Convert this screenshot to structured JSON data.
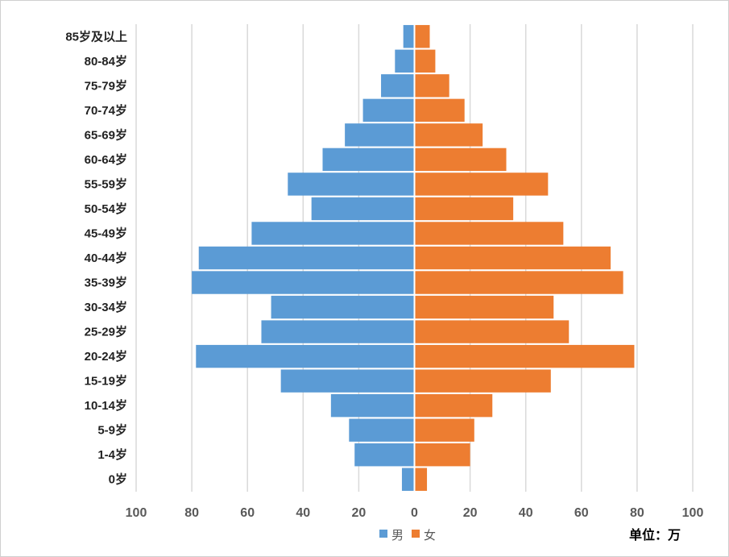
{
  "chart_data": {
    "type": "bar",
    "orientation": "horizontal",
    "subtype": "population-pyramid",
    "categories": [
      "0岁",
      "1-4岁",
      "5-9岁",
      "10-14岁",
      "15-19岁",
      "20-24岁",
      "25-29岁",
      "30-34岁",
      "35-39岁",
      "40-44岁",
      "45-49岁",
      "50-54岁",
      "55-59岁",
      "60-64岁",
      "65-69岁",
      "70-74岁",
      "75-79岁",
      "80-84岁",
      "85岁及以上"
    ],
    "series": [
      {
        "name": "男",
        "color": "#5b9bd5",
        "values": [
          -4.5,
          -21.5,
          -23.5,
          -30,
          -48,
          -78.5,
          -55,
          -51.5,
          -80,
          -77.5,
          -58.5,
          -37,
          -45.5,
          -33,
          -25,
          -18.5,
          -12,
          -7,
          -4
        ]
      },
      {
        "name": "女",
        "color": "#ed7d31",
        "values": [
          4.5,
          20,
          21.5,
          28,
          49,
          79,
          55.5,
          50,
          75,
          70.5,
          53.5,
          35.5,
          48,
          33,
          24.5,
          18,
          12.5,
          7.5,
          5.5
        ]
      }
    ],
    "xlim": [
      -100,
      100
    ],
    "xticks": [
      -100,
      -80,
      -60,
      -40,
      -20,
      0,
      20,
      40,
      60,
      80,
      100
    ],
    "xtick_labels": [
      "100",
      "80",
      "60",
      "40",
      "20",
      "0",
      "20",
      "40",
      "60",
      "80",
      "100"
    ],
    "grid": true,
    "legend": "bottom",
    "unit_label": "单位：万"
  }
}
